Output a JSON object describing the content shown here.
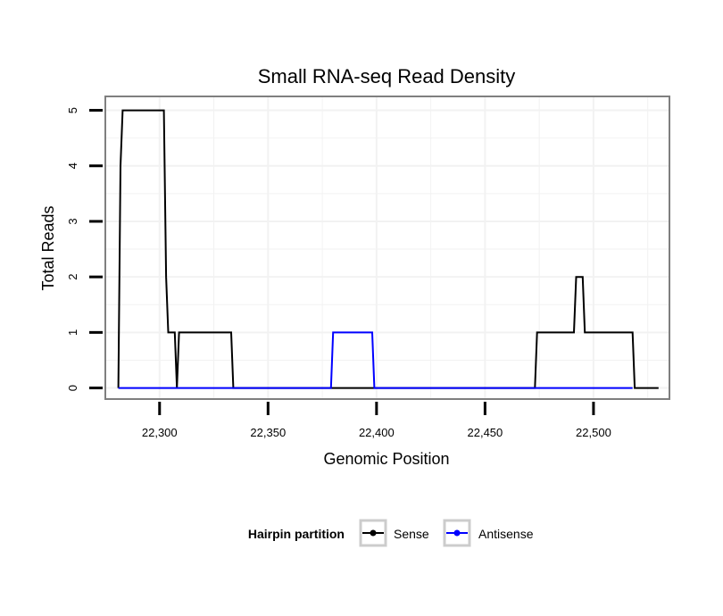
{
  "chart_data": {
    "type": "line",
    "title": "Small RNA-seq Read Density",
    "xlabel": "Genomic Position",
    "ylabel": "Total Reads",
    "xlim": [
      22275,
      22535
    ],
    "ylim": [
      -0.2,
      5.25
    ],
    "x_ticks": [
      22300,
      22350,
      22400,
      22450,
      22500
    ],
    "x_tick_labels": [
      "22,300",
      "22,350",
      "22,400",
      "22,450",
      "22,500"
    ],
    "y_ticks": [
      0,
      1,
      2,
      3,
      4,
      5
    ],
    "y_tick_labels": [
      "0",
      "1",
      "2",
      "3",
      "4",
      "5"
    ],
    "grid": true,
    "legend_title": "Hairpin partition",
    "legend_position": "bottom",
    "series": [
      {
        "name": "Sense",
        "color": "#000000",
        "x": [
          22281,
          22282,
          22283,
          22302,
          22303,
          22304,
          22307,
          22308,
          22309,
          22333,
          22334,
          22473,
          22474,
          22491,
          22492,
          22495,
          22496,
          22518,
          22519,
          22530
        ],
        "y": [
          0,
          4,
          5,
          5,
          2,
          1,
          1,
          0,
          1,
          1,
          0,
          0,
          1,
          1,
          2,
          2,
          1,
          1,
          0,
          0
        ]
      },
      {
        "name": "Antisense",
        "color": "#0000ff",
        "x": [
          22281,
          22379,
          22380,
          22398,
          22399,
          22518
        ],
        "y": [
          0,
          0,
          1,
          1,
          0,
          0
        ]
      }
    ]
  }
}
